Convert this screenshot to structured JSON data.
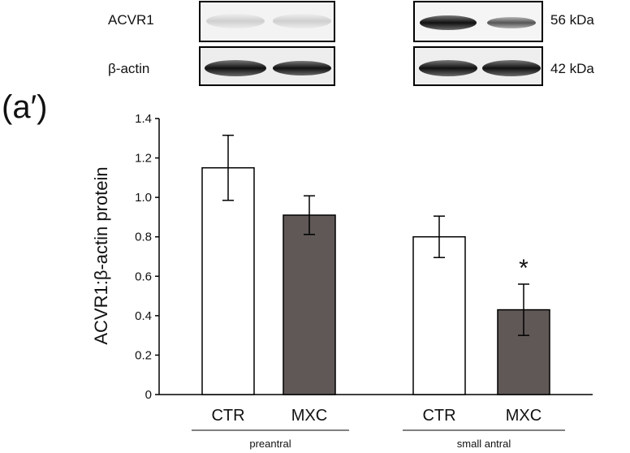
{
  "panel_label": "(a′)",
  "blots": {
    "rows": [
      {
        "label": "ACVR1",
        "size": "56 kDa"
      },
      {
        "label": "β-actin",
        "size": "42 kDa"
      }
    ]
  },
  "chart_data": {
    "type": "bar",
    "ylabel": "ACVR1:β-actin protein",
    "ylim": [
      0,
      1.4
    ],
    "yticks": [
      "0",
      "0.2",
      "0.4",
      "0.6",
      "0.8",
      "1.0",
      "1.2",
      "1.4"
    ],
    "groups": [
      {
        "label": "preantral",
        "bars": [
          {
            "category": "CTR",
            "value": 1.15,
            "error": 0.165,
            "color": "#ffffff"
          },
          {
            "category": "MXC",
            "value": 0.91,
            "error": 0.098,
            "color": "#5f5856"
          }
        ]
      },
      {
        "label": "small antral",
        "bars": [
          {
            "category": "CTR",
            "value": 0.8,
            "error": 0.105,
            "color": "#ffffff"
          },
          {
            "category": "MXC",
            "value": 0.43,
            "error": 0.13,
            "color": "#5f5856",
            "annotation": "*"
          }
        ]
      }
    ]
  }
}
